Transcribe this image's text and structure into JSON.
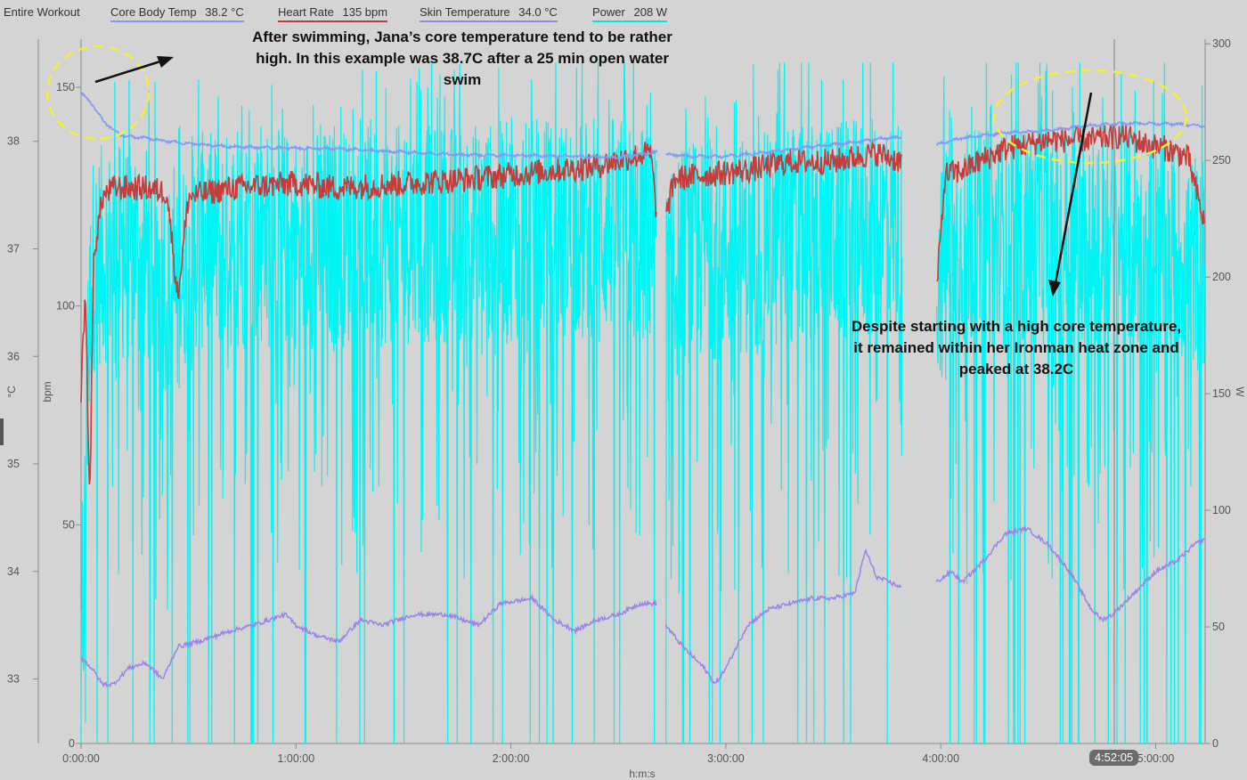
{
  "legend": {
    "scope": "Entire Workout",
    "items": [
      {
        "name": "Core Body Temp",
        "value": "38.2 °C",
        "color": "#7f9cf5"
      },
      {
        "name": "Heart Rate",
        "value": "135 bpm",
        "color": "#c43c3c"
      },
      {
        "name": "Skin Temperature",
        "value": "34.0 °C",
        "color": "#9a84e6"
      },
      {
        "name": "Power",
        "value": "208 W",
        "color": "#00f4f4"
      }
    ]
  },
  "cursor": {
    "time": "4:52:05"
  },
  "annotations": {
    "swim": [
      "After swimming, Jana’s core temperature tend to be rather",
      "high. In this example was 38.7C after a 25 min open water",
      "swim"
    ],
    "peak": [
      "Despite starting with a high core temperature,",
      "it remained within her Ironman heat zone and",
      "peaked at 38.2C"
    ]
  },
  "chart_data": {
    "type": "line",
    "x_label": "h:m:s",
    "x_ticks": [
      "0:00:00",
      "1:00:00",
      "2:00:00",
      "3:00:00",
      "4:00:00",
      "5:00:00"
    ],
    "x_range_hours": [
      0,
      5.23
    ],
    "axes": {
      "temp": {
        "label": "°C",
        "range": [
          32.4,
          38.95
        ],
        "ticks": [
          33,
          34,
          35,
          36,
          37,
          38
        ]
      },
      "hr": {
        "label": "bpm",
        "range": [
          0,
          161
        ],
        "ticks": [
          0,
          50,
          100,
          150
        ]
      },
      "power": {
        "label": "W",
        "range": [
          0,
          302
        ],
        "ticks": [
          0,
          50,
          100,
          150,
          200,
          250,
          300
        ]
      }
    },
    "gaps_hours": [
      [
        2.68,
        2.72
      ],
      [
        3.82,
        3.98
      ]
    ],
    "series": [
      {
        "name": "Core Body Temp",
        "axis": "temp",
        "color": "#7f9cf5",
        "points": [
          [
            0.0,
            38.45
          ],
          [
            0.05,
            38.35
          ],
          [
            0.1,
            38.2
          ],
          [
            0.15,
            38.1
          ],
          [
            0.2,
            38.05
          ],
          [
            0.3,
            38.03
          ],
          [
            0.4,
            38.0
          ],
          [
            0.5,
            37.98
          ],
          [
            0.7,
            37.95
          ],
          [
            0.9,
            37.94
          ],
          [
            1.2,
            37.93
          ],
          [
            1.4,
            37.91
          ],
          [
            1.7,
            37.88
          ],
          [
            1.9,
            37.87
          ],
          [
            2.1,
            37.87
          ],
          [
            2.3,
            37.86
          ],
          [
            2.5,
            37.85
          ],
          [
            2.6,
            37.88
          ],
          [
            2.68,
            37.9
          ],
          [
            2.72,
            37.88
          ],
          [
            2.85,
            37.86
          ],
          [
            3.0,
            37.86
          ],
          [
            3.2,
            37.9
          ],
          [
            3.4,
            37.95
          ],
          [
            3.55,
            37.98
          ],
          [
            3.7,
            38.02
          ],
          [
            3.82,
            38.04
          ],
          [
            3.98,
            37.97
          ],
          [
            4.1,
            38.03
          ],
          [
            4.3,
            38.08
          ],
          [
            4.5,
            38.1
          ],
          [
            4.7,
            38.15
          ],
          [
            4.9,
            38.17
          ],
          [
            5.1,
            38.16
          ],
          [
            5.23,
            38.14
          ]
        ]
      },
      {
        "name": "Heart Rate",
        "axis": "hr",
        "color": "#c43c3c",
        "points": [
          [
            0.0,
            80
          ],
          [
            0.02,
            104
          ],
          [
            0.04,
            55
          ],
          [
            0.06,
            112
          ],
          [
            0.1,
            125
          ],
          [
            0.15,
            127
          ],
          [
            0.3,
            127
          ],
          [
            0.4,
            126
          ],
          [
            0.45,
            102
          ],
          [
            0.5,
            125
          ],
          [
            0.7,
            127
          ],
          [
            1.0,
            128
          ],
          [
            1.2,
            127
          ],
          [
            1.5,
            128
          ],
          [
            1.8,
            129
          ],
          [
            2.0,
            130
          ],
          [
            2.2,
            131
          ],
          [
            2.4,
            132
          ],
          [
            2.55,
            134
          ],
          [
            2.65,
            135
          ],
          [
            2.68,
            120
          ],
          [
            2.72,
            120
          ],
          [
            2.76,
            129
          ],
          [
            2.9,
            130
          ],
          [
            3.1,
            131
          ],
          [
            3.3,
            133
          ],
          [
            3.5,
            133
          ],
          [
            3.6,
            134
          ],
          [
            3.7,
            135
          ],
          [
            3.82,
            133
          ],
          [
            3.98,
            103
          ],
          [
            4.02,
            130
          ],
          [
            4.1,
            131
          ],
          [
            4.3,
            136
          ],
          [
            4.5,
            138
          ],
          [
            4.7,
            138
          ],
          [
            4.85,
            139
          ],
          [
            4.95,
            137
          ],
          [
            5.05,
            136
          ],
          [
            5.15,
            134
          ],
          [
            5.23,
            118
          ]
        ]
      },
      {
        "name": "Skin Temperature",
        "axis": "temp",
        "color": "#9a84e6",
        "points": [
          [
            0.0,
            33.2
          ],
          [
            0.05,
            33.1
          ],
          [
            0.1,
            32.95
          ],
          [
            0.15,
            32.95
          ],
          [
            0.22,
            33.1
          ],
          [
            0.3,
            33.15
          ],
          [
            0.38,
            33.0
          ],
          [
            0.45,
            33.3
          ],
          [
            0.55,
            33.35
          ],
          [
            0.7,
            33.45
          ],
          [
            0.8,
            33.5
          ],
          [
            0.95,
            33.6
          ],
          [
            1.0,
            33.5
          ],
          [
            1.1,
            33.4
          ],
          [
            1.2,
            33.35
          ],
          [
            1.3,
            33.55
          ],
          [
            1.4,
            33.5
          ],
          [
            1.55,
            33.6
          ],
          [
            1.7,
            33.6
          ],
          [
            1.85,
            33.5
          ],
          [
            1.95,
            33.7
          ],
          [
            2.1,
            33.75
          ],
          [
            2.2,
            33.55
          ],
          [
            2.3,
            33.45
          ],
          [
            2.4,
            33.55
          ],
          [
            2.5,
            33.6
          ],
          [
            2.6,
            33.7
          ],
          [
            2.68,
            33.7
          ],
          [
            2.72,
            33.5
          ],
          [
            2.8,
            33.3
          ],
          [
            2.9,
            33.1
          ],
          [
            2.95,
            32.95
          ],
          [
            3.0,
            33.1
          ],
          [
            3.1,
            33.5
          ],
          [
            3.2,
            33.65
          ],
          [
            3.3,
            33.7
          ],
          [
            3.4,
            33.75
          ],
          [
            3.5,
            33.75
          ],
          [
            3.6,
            33.8
          ],
          [
            3.65,
            34.2
          ],
          [
            3.7,
            33.95
          ],
          [
            3.82,
            33.85
          ],
          [
            3.98,
            33.9
          ],
          [
            4.05,
            34.0
          ],
          [
            4.1,
            33.9
          ],
          [
            4.2,
            34.1
          ],
          [
            4.3,
            34.35
          ],
          [
            4.4,
            34.4
          ],
          [
            4.5,
            34.25
          ],
          [
            4.6,
            34.0
          ],
          [
            4.7,
            33.65
          ],
          [
            4.75,
            33.55
          ],
          [
            4.8,
            33.6
          ],
          [
            4.9,
            33.8
          ],
          [
            5.0,
            34.0
          ],
          [
            5.1,
            34.1
          ],
          [
            5.18,
            34.25
          ],
          [
            5.23,
            34.3
          ]
        ]
      },
      {
        "name": "Power",
        "axis": "power",
        "color": "#00f4f4",
        "profile": [
          [
            0.0,
            0
          ],
          [
            0.03,
            150
          ],
          [
            0.05,
            205
          ],
          [
            0.1,
            210
          ],
          [
            0.3,
            210
          ],
          [
            0.45,
            190
          ],
          [
            0.5,
            215
          ],
          [
            1.0,
            216
          ],
          [
            1.5,
            218
          ],
          [
            2.0,
            220
          ],
          [
            2.5,
            222
          ],
          [
            2.68,
            215
          ],
          [
            2.72,
            190
          ],
          [
            2.8,
            210
          ],
          [
            3.2,
            215
          ],
          [
            3.6,
            220
          ],
          [
            3.82,
            222
          ],
          [
            3.98,
            200
          ],
          [
            4.05,
            215
          ],
          [
            4.5,
            218
          ],
          [
            5.0,
            215
          ],
          [
            5.23,
            205
          ]
        ]
      }
    ]
  }
}
